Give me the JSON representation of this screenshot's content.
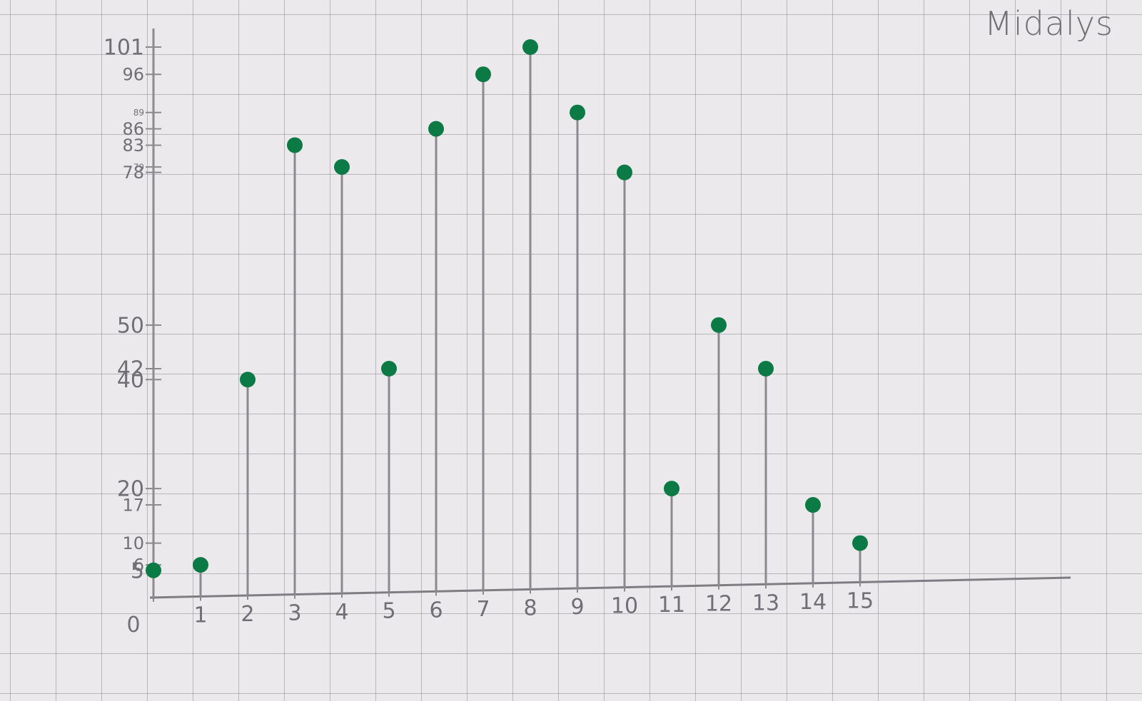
{
  "author": "Midalys",
  "chart_data": {
    "type": "stem",
    "title": "",
    "xlabel": "",
    "ylabel": "",
    "x": [
      0,
      1,
      2,
      3,
      4,
      5,
      6,
      7,
      8,
      9,
      10,
      11,
      12,
      13,
      14,
      15
    ],
    "values": [
      5,
      6,
      40,
      83,
      79,
      42,
      86,
      96,
      101,
      89,
      78,
      20,
      50,
      42,
      17,
      10
    ],
    "x_ticks": [
      "0",
      "1",
      "2",
      "3",
      "4",
      "5",
      "6",
      "7",
      "8",
      "9",
      "10",
      "11",
      "12",
      "13",
      "14",
      "15"
    ],
    "y_ticks": [
      "5",
      "6",
      "10",
      "17",
      "20",
      "40",
      "42",
      "50",
      "78",
      "79",
      "83",
      "86",
      "89",
      "96",
      "101"
    ],
    "ylim": [
      0,
      101
    ],
    "xlim": [
      0,
      15
    ],
    "grid": true,
    "colors": {
      "stem": "#8a8a8f",
      "marker": "#0b7a45",
      "axis": "#8a8a8f"
    }
  }
}
